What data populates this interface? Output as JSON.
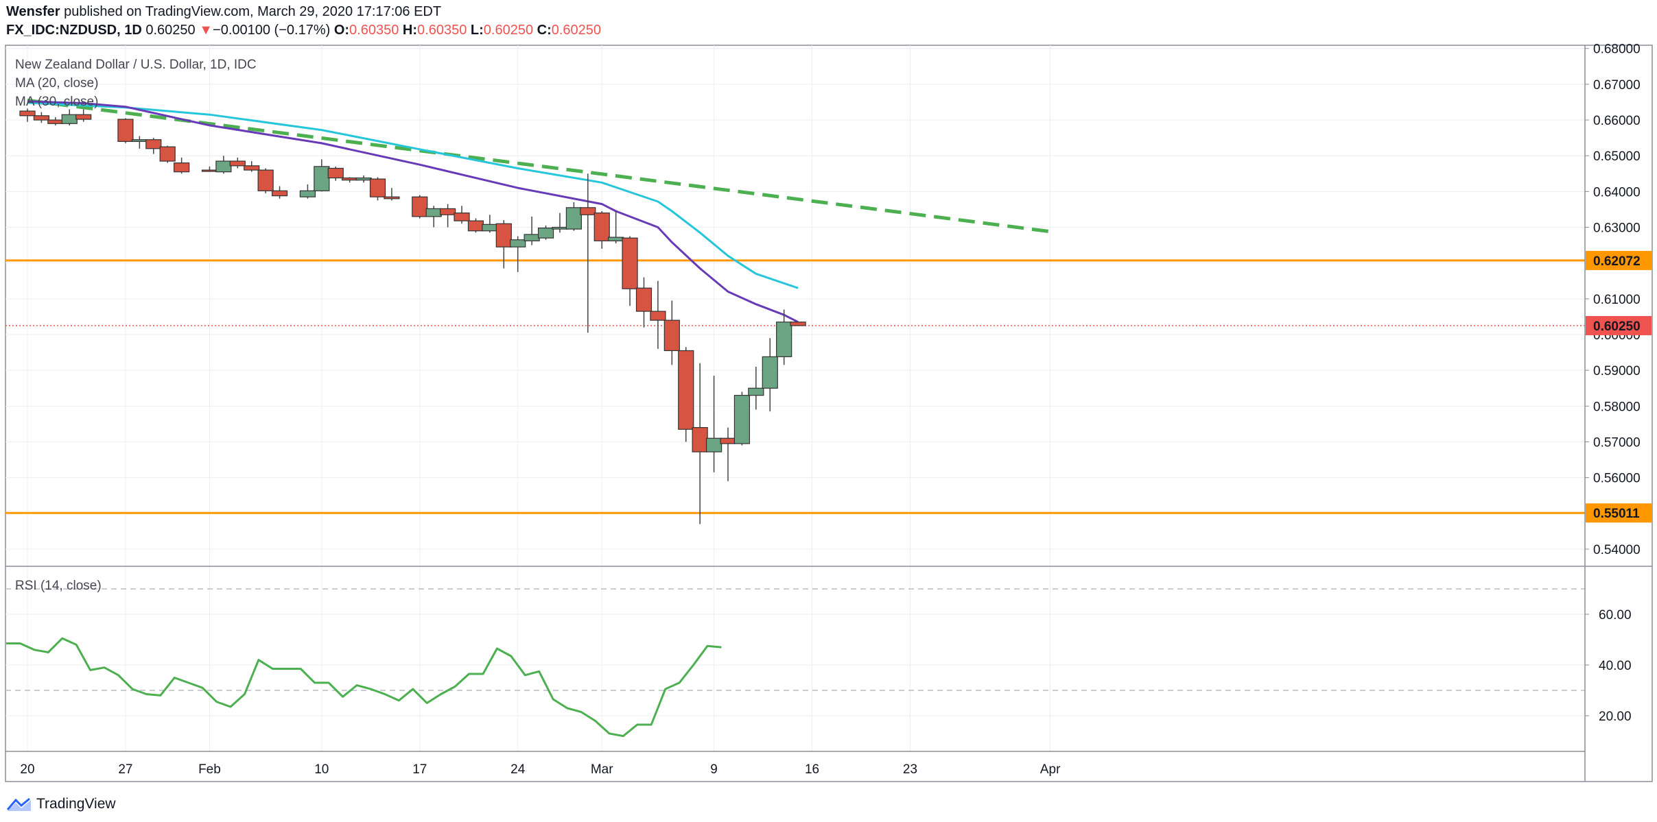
{
  "header": {
    "author": "Wensfer",
    "published_text": "published on TradingView.com, March 29, 2020 17:17:06 EDT",
    "symbol": "FX_IDC:NZDUSD, 1D",
    "last": "0.60250",
    "change_arrow": "▼",
    "change": "−0.00100 (−0.17%)",
    "o_label": "O:",
    "o_value": "0.60350",
    "h_label": "H:",
    "h_value": "0.60350",
    "l_label": "L:",
    "l_value": "0.60250",
    "c_label": "C:",
    "c_value": "0.60250"
  },
  "footer": {
    "brand": "TradingView",
    "logo_icon": "tradingview-logo-icon"
  },
  "colors": {
    "up": "#6ba583",
    "down": "#d75442",
    "ma20": "#673ab7",
    "ma30": "#26c6da",
    "trend": "#4caf50",
    "support": "#ff9800",
    "rsi": "#4caf50",
    "price_line": "#ef5350"
  },
  "chart_data": [
    {
      "type": "candlestick",
      "title": "New Zealand Dollar / U.S. Dollar, 1D, IDC",
      "indicator_labels": [
        "MA (20, close)",
        "MA (30, close)"
      ],
      "y_ticks": [
        "0.54000",
        "0.55000",
        "0.56000",
        "0.57000",
        "0.58000",
        "0.59000",
        "0.60000",
        "0.61000",
        "0.62000",
        "0.63000",
        "0.64000",
        "0.65000",
        "0.66000",
        "0.67000",
        "0.68000"
      ],
      "x_ticks": [
        {
          "label": "20",
          "day": 20
        },
        {
          "label": "27",
          "day": 27
        },
        {
          "label": "Feb",
          "day": 33
        },
        {
          "label": "10",
          "day": 41
        },
        {
          "label": "17",
          "day": 48
        },
        {
          "label": "24",
          "day": 55
        },
        {
          "label": "Mar",
          "day": 61
        },
        {
          "label": "9",
          "day": 69
        },
        {
          "label": "16",
          "day": 76
        },
        {
          "label": "23",
          "day": 83
        },
        {
          "label": "Apr",
          "day": 93
        }
      ],
      "horizontal_levels": [
        {
          "label": "0.62072",
          "value": 0.62072
        },
        {
          "label": "0.55011",
          "value": 0.55011
        }
      ],
      "last_price": {
        "label": "0.60250",
        "value": 0.6025
      },
      "candles": [
        {
          "day": 20,
          "o": 0.6625,
          "h": 0.6632,
          "l": 0.6595,
          "c": 0.6612
        },
        {
          "day": 21,
          "o": 0.6612,
          "h": 0.6622,
          "l": 0.6592,
          "c": 0.66
        },
        {
          "day": 22,
          "o": 0.66,
          "h": 0.6608,
          "l": 0.6585,
          "c": 0.659
        },
        {
          "day": 23,
          "o": 0.659,
          "h": 0.663,
          "l": 0.6585,
          "c": 0.6615
        },
        {
          "day": 24,
          "o": 0.6615,
          "h": 0.663,
          "l": 0.6595,
          "c": 0.6602
        },
        {
          "day": 27,
          "o": 0.6602,
          "h": 0.6605,
          "l": 0.6535,
          "c": 0.654
        },
        {
          "day": 28,
          "o": 0.654,
          "h": 0.6555,
          "l": 0.652,
          "c": 0.6545
        },
        {
          "day": 29,
          "o": 0.6545,
          "h": 0.655,
          "l": 0.6505,
          "c": 0.652
        },
        {
          "day": 30,
          "o": 0.6525,
          "h": 0.6528,
          "l": 0.648,
          "c": 0.6485
        },
        {
          "day": 31,
          "o": 0.648,
          "h": 0.6495,
          "l": 0.645,
          "c": 0.6455
        },
        {
          "day": 33,
          "o": 0.646,
          "h": 0.647,
          "l": 0.6455,
          "c": 0.6458
        },
        {
          "day": 34,
          "o": 0.6455,
          "h": 0.65,
          "l": 0.645,
          "c": 0.6485
        },
        {
          "day": 35,
          "o": 0.6485,
          "h": 0.6495,
          "l": 0.6465,
          "c": 0.6472
        },
        {
          "day": 36,
          "o": 0.6472,
          "h": 0.6485,
          "l": 0.6455,
          "c": 0.646
        },
        {
          "day": 37,
          "o": 0.646,
          "h": 0.6465,
          "l": 0.6395,
          "c": 0.6402
        },
        {
          "day": 38,
          "o": 0.6402,
          "h": 0.6415,
          "l": 0.638,
          "c": 0.6388
        },
        {
          "day": 40,
          "o": 0.6385,
          "h": 0.642,
          "l": 0.638,
          "c": 0.6402
        },
        {
          "day": 41,
          "o": 0.6402,
          "h": 0.649,
          "l": 0.64,
          "c": 0.647
        },
        {
          "day": 42,
          "o": 0.6465,
          "h": 0.647,
          "l": 0.643,
          "c": 0.6438
        },
        {
          "day": 43,
          "o": 0.6438,
          "h": 0.644,
          "l": 0.6425,
          "c": 0.6432
        },
        {
          "day": 44,
          "o": 0.6432,
          "h": 0.6445,
          "l": 0.6425,
          "c": 0.6438
        },
        {
          "day": 45,
          "o": 0.6435,
          "h": 0.644,
          "l": 0.6375,
          "c": 0.6385
        },
        {
          "day": 46,
          "o": 0.6385,
          "h": 0.641,
          "l": 0.6375,
          "c": 0.638
        },
        {
          "day": 48,
          "o": 0.6385,
          "h": 0.639,
          "l": 0.6325,
          "c": 0.633
        },
        {
          "day": 49,
          "o": 0.633,
          "h": 0.636,
          "l": 0.63,
          "c": 0.6352
        },
        {
          "day": 50,
          "o": 0.6352,
          "h": 0.6365,
          "l": 0.63,
          "c": 0.6335
        },
        {
          "day": 51,
          "o": 0.634,
          "h": 0.636,
          "l": 0.631,
          "c": 0.6318
        },
        {
          "day": 52,
          "o": 0.6318,
          "h": 0.6325,
          "l": 0.6285,
          "c": 0.629
        },
        {
          "day": 53,
          "o": 0.629,
          "h": 0.6335,
          "l": 0.6285,
          "c": 0.6308
        },
        {
          "day": 54,
          "o": 0.631,
          "h": 0.632,
          "l": 0.6185,
          "c": 0.6245
        },
        {
          "day": 55,
          "o": 0.6245,
          "h": 0.6275,
          "l": 0.6175,
          "c": 0.6265
        },
        {
          "day": 56,
          "o": 0.6262,
          "h": 0.633,
          "l": 0.625,
          "c": 0.628
        },
        {
          "day": 57,
          "o": 0.627,
          "h": 0.6305,
          "l": 0.6265,
          "c": 0.6298
        },
        {
          "day": 58,
          "o": 0.6295,
          "h": 0.634,
          "l": 0.6285,
          "c": 0.63
        },
        {
          "day": 59,
          "o": 0.6295,
          "h": 0.637,
          "l": 0.629,
          "c": 0.6355
        },
        {
          "day": 60,
          "o": 0.6355,
          "h": 0.645,
          "l": 0.6005,
          "c": 0.6335
        },
        {
          "day": 61,
          "o": 0.634,
          "h": 0.6345,
          "l": 0.624,
          "c": 0.6262
        },
        {
          "day": 62,
          "o": 0.6262,
          "h": 0.6345,
          "l": 0.6255,
          "c": 0.6272
        },
        {
          "day": 63,
          "o": 0.627,
          "h": 0.6275,
          "l": 0.608,
          "c": 0.6128
        },
        {
          "day": 64,
          "o": 0.613,
          "h": 0.616,
          "l": 0.602,
          "c": 0.6065
        },
        {
          "day": 65,
          "o": 0.6065,
          "h": 0.615,
          "l": 0.596,
          "c": 0.604
        },
        {
          "day": 66,
          "o": 0.604,
          "h": 0.6095,
          "l": 0.5915,
          "c": 0.5955
        },
        {
          "day": 67,
          "o": 0.5955,
          "h": 0.5965,
          "l": 0.57,
          "c": 0.5735
        },
        {
          "day": 68,
          "o": 0.574,
          "h": 0.592,
          "l": 0.547,
          "c": 0.5672
        },
        {
          "day": 69,
          "o": 0.5672,
          "h": 0.5885,
          "l": 0.5615,
          "c": 0.571
        },
        {
          "day": 70,
          "o": 0.571,
          "h": 0.574,
          "l": 0.559,
          "c": 0.5695
        },
        {
          "day": 71,
          "o": 0.5695,
          "h": 0.584,
          "l": 0.569,
          "c": 0.583
        },
        {
          "day": 72,
          "o": 0.583,
          "h": 0.591,
          "l": 0.579,
          "c": 0.585
        },
        {
          "day": 73,
          "o": 0.585,
          "h": 0.599,
          "l": 0.5785,
          "c": 0.5938
        },
        {
          "day": 74,
          "o": 0.5938,
          "h": 0.607,
          "l": 0.5915,
          "c": 0.6035
        },
        {
          "day": 75,
          "o": 0.6035,
          "h": 0.6035,
          "l": 0.6025,
          "c": 0.6025
        }
      ],
      "ma20": [
        {
          "day": 20,
          "v": 0.6652
        },
        {
          "day": 24,
          "v": 0.6647
        },
        {
          "day": 27,
          "v": 0.6637
        },
        {
          "day": 33,
          "v": 0.6585
        },
        {
          "day": 41,
          "v": 0.6535
        },
        {
          "day": 48,
          "v": 0.6475
        },
        {
          "day": 55,
          "v": 0.641
        },
        {
          "day": 61,
          "v": 0.6365
        },
        {
          "day": 62,
          "v": 0.6345
        },
        {
          "day": 65,
          "v": 0.63
        },
        {
          "day": 66,
          "v": 0.6258
        },
        {
          "day": 68,
          "v": 0.6185
        },
        {
          "day": 70,
          "v": 0.612
        },
        {
          "day": 72,
          "v": 0.6085
        },
        {
          "day": 74,
          "v": 0.6055
        },
        {
          "day": 75,
          "v": 0.6035
        }
      ],
      "ma30": [
        {
          "day": 20,
          "v": 0.6648
        },
        {
          "day": 27,
          "v": 0.6635
        },
        {
          "day": 30,
          "v": 0.6625
        },
        {
          "day": 33,
          "v": 0.6615
        },
        {
          "day": 41,
          "v": 0.6572
        },
        {
          "day": 48,
          "v": 0.6518
        },
        {
          "day": 55,
          "v": 0.6465
        },
        {
          "day": 61,
          "v": 0.6425
        },
        {
          "day": 65,
          "v": 0.6372
        },
        {
          "day": 66,
          "v": 0.6345
        },
        {
          "day": 68,
          "v": 0.6285
        },
        {
          "day": 70,
          "v": 0.622
        },
        {
          "day": 72,
          "v": 0.617
        },
        {
          "day": 75,
          "v": 0.613
        }
      ],
      "trendline": [
        {
          "day": 20,
          "v": 0.6655
        },
        {
          "day": 93,
          "v": 0.6288
        }
      ]
    },
    {
      "type": "line",
      "title": "RSI (14, close)",
      "y_ticks": [
        "20.00",
        "40.00",
        "60.00"
      ],
      "reference_levels": [
        70,
        30
      ],
      "rsi": [
        {
          "day": 19,
          "v": 48.5
        },
        {
          "day": 20,
          "v": 48.5
        },
        {
          "day": 21,
          "v": 46
        },
        {
          "day": 22,
          "v": 45
        },
        {
          "day": 23,
          "v": 50.5
        },
        {
          "day": 24,
          "v": 48
        },
        {
          "day": 25,
          "v": 38
        },
        {
          "day": 26,
          "v": 39
        },
        {
          "day": 27,
          "v": 36
        },
        {
          "day": 28,
          "v": 30.5
        },
        {
          "day": 29,
          "v": 28.5
        },
        {
          "day": 30,
          "v": 28
        },
        {
          "day": 31,
          "v": 35
        },
        {
          "day": 32,
          "v": 33
        },
        {
          "day": 33,
          "v": 31
        },
        {
          "day": 34,
          "v": 25.5
        },
        {
          "day": 35,
          "v": 23.5
        },
        {
          "day": 36,
          "v": 28.5
        },
        {
          "day": 37,
          "v": 42
        },
        {
          "day": 38,
          "v": 38.5
        },
        {
          "day": 39,
          "v": 38.5
        },
        {
          "day": 40,
          "v": 38.5
        },
        {
          "day": 41,
          "v": 33
        },
        {
          "day": 42,
          "v": 33
        },
        {
          "day": 43,
          "v": 27.5
        },
        {
          "day": 44,
          "v": 32
        },
        {
          "day": 45,
          "v": 30.5
        },
        {
          "day": 46,
          "v": 28.5
        },
        {
          "day": 47,
          "v": 26
        },
        {
          "day": 48,
          "v": 30.5
        },
        {
          "day": 49,
          "v": 25
        },
        {
          "day": 50,
          "v": 28.5
        },
        {
          "day": 51,
          "v": 31.5
        },
        {
          "day": 52,
          "v": 36.5
        },
        {
          "day": 53,
          "v": 36.5
        },
        {
          "day": 54,
          "v": 46.5
        },
        {
          "day": 55,
          "v": 43.5
        },
        {
          "day": 56,
          "v": 36
        },
        {
          "day": 57,
          "v": 37.5
        },
        {
          "day": 58,
          "v": 26.5
        },
        {
          "day": 59,
          "v": 23
        },
        {
          "day": 60,
          "v": 21.5
        },
        {
          "day": 61,
          "v": 18
        },
        {
          "day": 62,
          "v": 13
        },
        {
          "day": 63,
          "v": 12
        },
        {
          "day": 64,
          "v": 16.5
        },
        {
          "day": 65,
          "v": 16.5
        },
        {
          "day": 66,
          "v": 30.5
        },
        {
          "day": 67,
          "v": 33
        },
        {
          "day": 68,
          "v": 40
        },
        {
          "day": 69,
          "v": 47.5
        },
        {
          "day": 70,
          "v": 47
        }
      ]
    }
  ]
}
